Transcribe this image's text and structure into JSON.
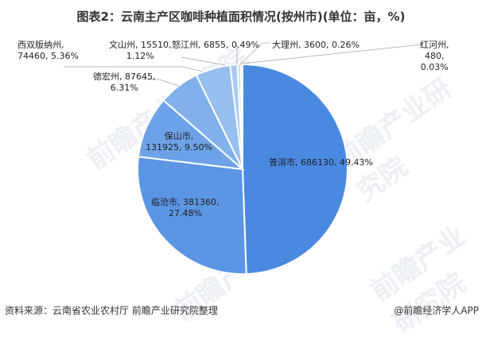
{
  "title": "图表2：云南主产区咖啡种植面积情况(按州市)(单位：亩，%)",
  "source": "资料来源：云南省农业农村厅 前瞻产业研究院整理",
  "credit": "@前瞻经济学人APP",
  "watermark": "前瞻产业研究院",
  "labels": {
    "puer": "普洱市, 686130, 49.43%",
    "lincang_1": "临沧市, 381360,",
    "lincang_2": "27.48%",
    "baoshan_1": "保山市,",
    "baoshan_2": "131925, 9.50%",
    "dehong_1": "德宏州, 87645,",
    "dehong_2": "6.31%",
    "xishuang_1": "西双版纳州,",
    "xishuang_2": "74460, 5.36%",
    "wenshan_1": "文山州, 15510,",
    "wenshan_2": "1.12%",
    "nujiang": "怒江州, 6855, 0.49%",
    "dali": "大理州, 3600, 0.26%",
    "honghe_1": "红河州,",
    "honghe_2": "480,",
    "honghe_3": "0.03%"
  },
  "chart_data": {
    "type": "pie",
    "title": "图表2：云南主产区咖啡种植面积情况(按州市)(单位：亩，%)",
    "unit": "亩",
    "categories": [
      "普洱市",
      "临沧市",
      "保山市",
      "德宏州",
      "西双版纳州",
      "文山州",
      "怒江州",
      "大理州",
      "红河州"
    ],
    "values": [
      686130,
      381360,
      131925,
      87645,
      74460,
      15510,
      6855,
      3600,
      480
    ],
    "percentages": [
      49.43,
      27.48,
      9.5,
      6.31,
      5.36,
      1.12,
      0.49,
      0.26,
      0.03
    ],
    "colors": [
      "#4a89e0",
      "#5b95e4",
      "#6ea2e8",
      "#82b0ec",
      "#97bfef",
      "#a9cbf2",
      "#bcd7f5",
      "#2f5da8",
      "#1f4a8a"
    ],
    "start_angle": "12 o'clock, clockwise",
    "legend": "none, data labels on/near slices"
  }
}
